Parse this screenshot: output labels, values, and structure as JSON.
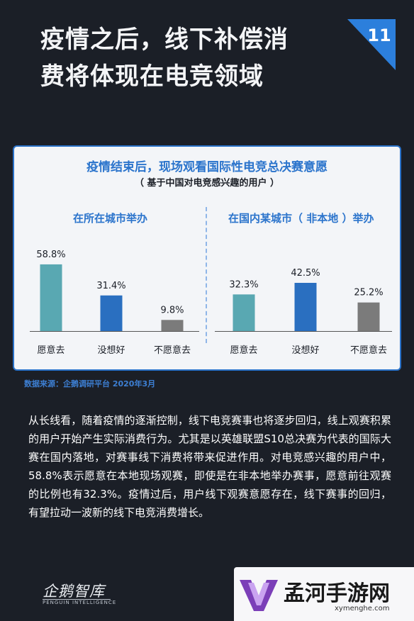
{
  "header": {
    "title_line1": "疫情之后，线下补偿消",
    "title_line2": "费将体现在电竞领域",
    "page_number": "11"
  },
  "chart_data": [
    {
      "type": "bar",
      "title": "疫情结束后，现场观看国际性电竞总决赛意愿",
      "subtitle": "（ 基于中国对电竞感兴趣的用户 ）",
      "panel_title": "在所在城市举办",
      "categories": [
        "愿意去",
        "没想好",
        "不愿意去"
      ],
      "values": [
        58.8,
        31.4,
        9.8
      ],
      "value_labels": [
        "58.8%",
        "31.4%",
        "9.8%"
      ],
      "colors": [
        "#59a8b2",
        "#2a6fc0",
        "#7b7b7b"
      ],
      "ylim": [
        0,
        100
      ],
      "grid": false
    },
    {
      "type": "bar",
      "panel_title": "在国内某城市（ 非本地 ）举办",
      "categories": [
        "愿意去",
        "没想好",
        "不愿意去"
      ],
      "values": [
        32.3,
        42.5,
        25.2
      ],
      "value_labels": [
        "32.3%",
        "42.5%",
        "25.2%"
      ],
      "colors": [
        "#59a8b2",
        "#2a6fc0",
        "#7b7b7b"
      ],
      "ylim": [
        0,
        100
      ],
      "grid": false
    }
  ],
  "source": "数据来源：企鹅调研平台 2020年3月",
  "body_text": "从长线看，随着疫情的逐渐控制，线下电竞赛事也将逐步回归，线上观赛积累的用户开始产生实际消费行为。尤其是以英雄联盟S10总决赛为代表的国际大赛在国内落地，对赛事线下消费将带来促进作用。对电竞感兴趣的用户中，58.8%表示愿意在本地现场观赛，即使是在非本地举办赛事，愿意前往观赛的比例也有32.3%。疫情过后，用户线下观赛意愿存在，线下赛事的回归，有望拉动一波新的线下电竞消费增长。",
  "footer": {
    "logo": "企鹅智库",
    "logo_sub": "PENGUIN INTELLIGENCE"
  },
  "watermark": {
    "name": "孟河手游网",
    "url": "xymenghe.com"
  }
}
